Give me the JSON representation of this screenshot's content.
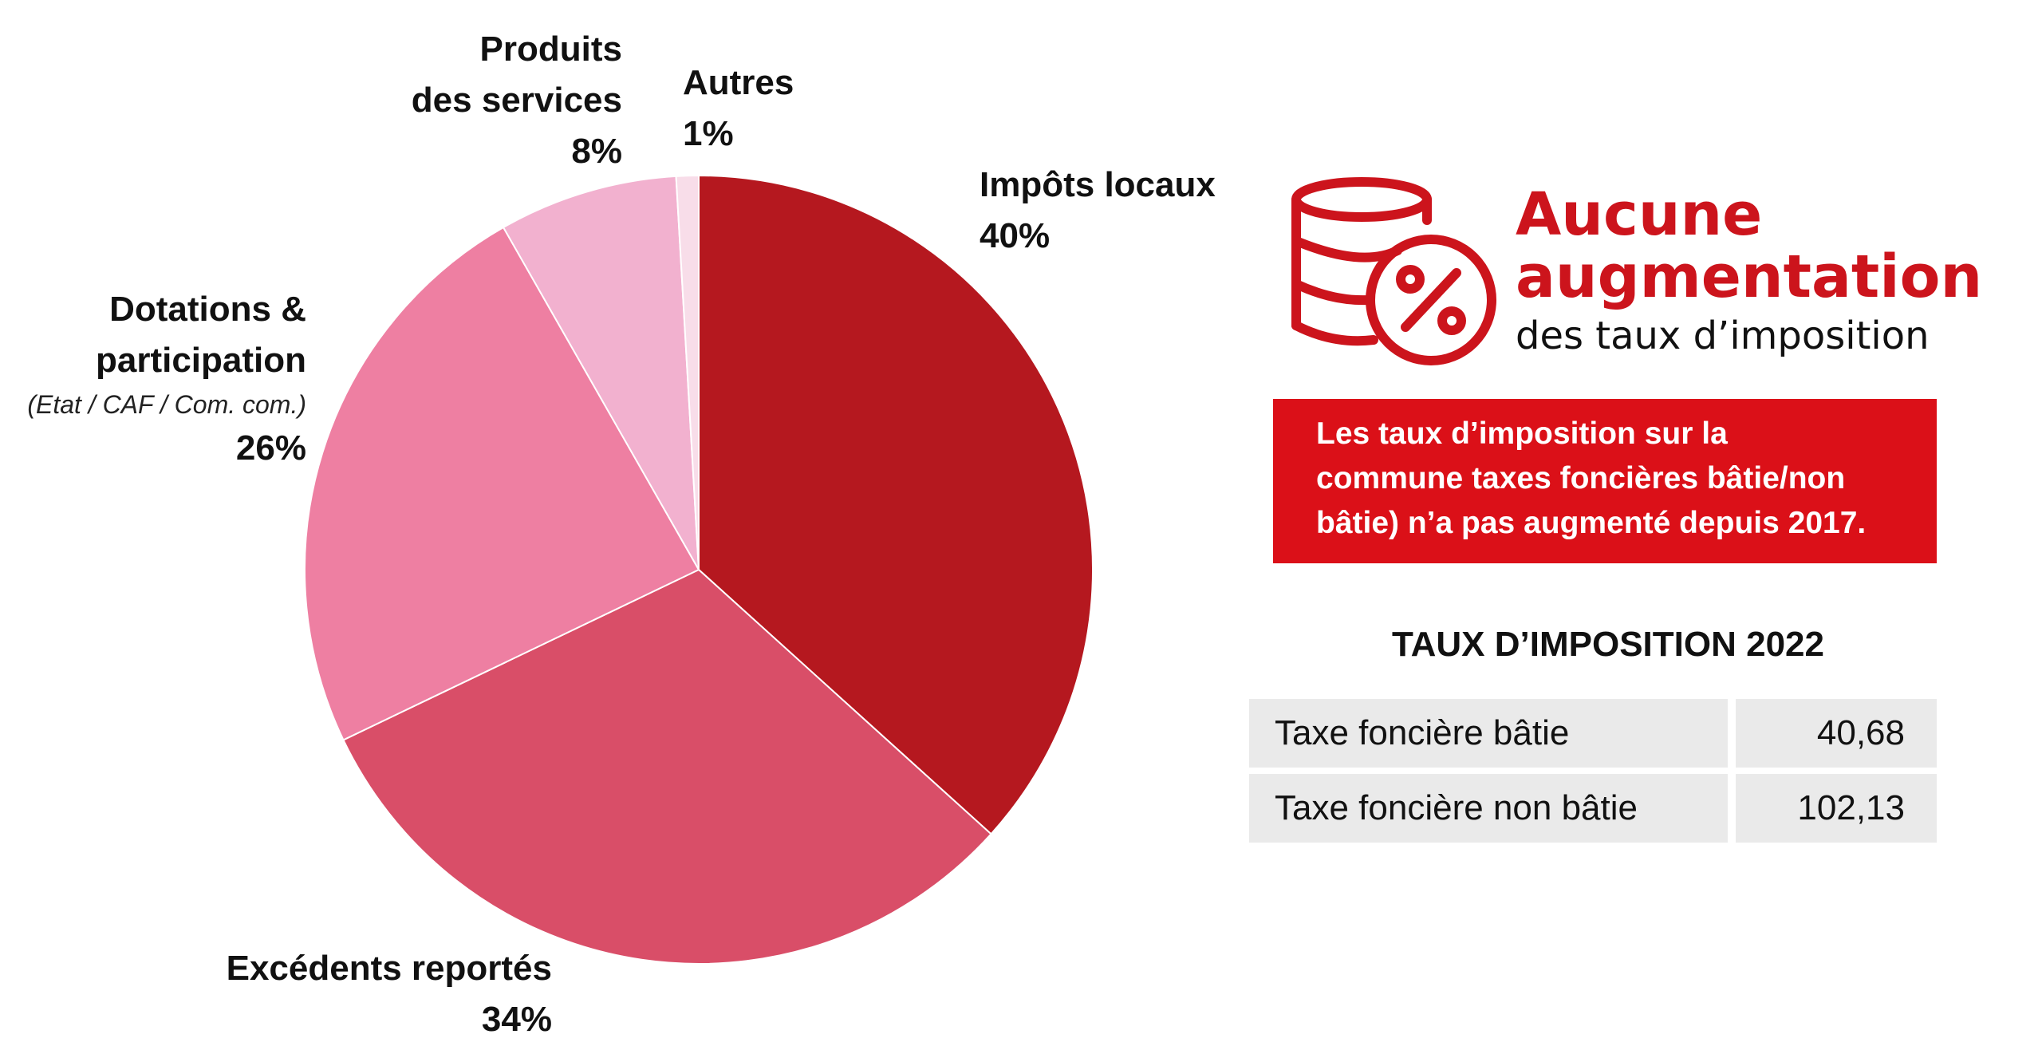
{
  "chart_data": {
    "type": "pie",
    "start_angle_deg": 0,
    "direction": "clockwise",
    "slices": [
      {
        "label": "Impôts locaux",
        "value": 40,
        "display": "40%",
        "color": "#b5181f"
      },
      {
        "label": "Excédents reportés",
        "value": 34,
        "display": "34%",
        "color": "#d94e68"
      },
      {
        "label": "Dotations & participation",
        "sublabel": "(Etat / CAF / Com. com.)",
        "value": 26,
        "display": "26%",
        "color": "#ee7fa2"
      },
      {
        "label": "Produits des services",
        "value": 8,
        "display": "8%",
        "color": "#f2b1cf"
      },
      {
        "label": "Autres",
        "value": 1,
        "display": "1%",
        "color": "#f8dde9"
      }
    ]
  },
  "pie_labels": {
    "produits": {
      "line1": "Produits",
      "line2": "des services",
      "pct": "8%"
    },
    "autres": {
      "line1": "Autres",
      "pct": "1%"
    },
    "impots": {
      "line1": "Impôts locaux",
      "pct": "40%"
    },
    "dotations": {
      "line1": "Dotations &",
      "line2": "participation",
      "sub": "(Etat / CAF / Com. com.)",
      "pct": "26%"
    },
    "excedents": {
      "line1": "Excédents reportés",
      "pct": "34%"
    }
  },
  "headline": {
    "line1": "Aucune",
    "line2": "augmentation",
    "line3": "des taux d’imposition",
    "icon": "coins-percent-icon",
    "accent_color": "#cc141c"
  },
  "info_box": {
    "line1": "Les taux d’imposition sur la",
    "line2": "commune taxes foncières bâtie/non",
    "line3": "bâtie) n’a pas augmenté depuis 2017.",
    "background": "#db1018"
  },
  "table": {
    "title": "TAUX D’IMPOSITION 2022",
    "rows": [
      {
        "name": "Taxe foncière bâtie",
        "value": "40,68"
      },
      {
        "name": "Taxe foncière non bâtie",
        "value": "102,13"
      }
    ]
  }
}
